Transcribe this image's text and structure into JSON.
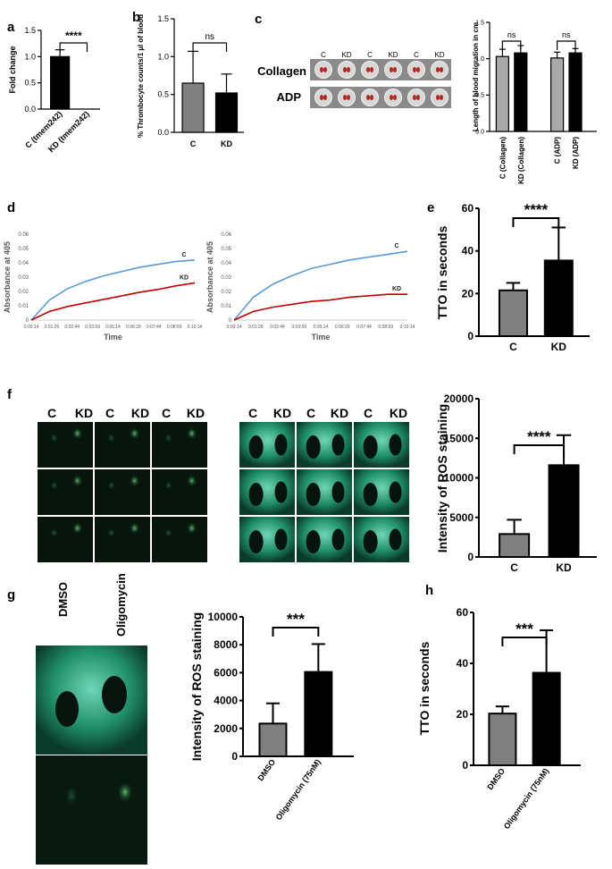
{
  "panels": {
    "a": "a",
    "b": "b",
    "c": "c",
    "d": "d",
    "e": "e",
    "f": "f",
    "g": "g",
    "h": "h"
  },
  "image_labels": {
    "c_rows": [
      "Collagen",
      "ADP"
    ],
    "c_cols": [
      "C",
      "KD",
      "C",
      "KD",
      "C",
      "KD"
    ],
    "f_cols": [
      "C",
      "KD",
      "C",
      "KD",
      "C",
      "KD"
    ],
    "g_cols": [
      "DMSO",
      "Oligomycin"
    ]
  },
  "chart_data": [
    {
      "id": "a",
      "type": "bar",
      "categories": [
        "C (tmem242)",
        "KD (tmem242)"
      ],
      "values": [
        1.0,
        0.0
      ],
      "errors": [
        0.13,
        0.0
      ],
      "colors": [
        "#000000",
        "#000000"
      ],
      "ylabel": "Fold change",
      "ylim": [
        0,
        1.5
      ],
      "yticks": [
        "0.0",
        "0.5",
        "1.0",
        "1.5"
      ],
      "ytick_values": [
        0,
        0.5,
        1.0,
        1.5
      ],
      "significance": "****"
    },
    {
      "id": "b",
      "type": "bar",
      "categories": [
        "C",
        "KD"
      ],
      "values": [
        0.65,
        0.52
      ],
      "errors": [
        0.42,
        0.25
      ],
      "colors": [
        "#808080",
        "#000000"
      ],
      "ylabel": "% Thrombocyte counts/1 µl of blood",
      "ylim": [
        0,
        1.5
      ],
      "yticks": [
        "0.0",
        "0.5",
        "1.0",
        "1.5"
      ],
      "ytick_values": [
        0,
        0.5,
        1.0,
        1.5
      ],
      "significance": "ns"
    },
    {
      "id": "c",
      "type": "bar",
      "categories": [
        "C (Collagen)",
        "KD (Collagen)",
        "C (ADP)",
        "KD (ADP)"
      ],
      "values": [
        1.03,
        1.08,
        1.01,
        1.08
      ],
      "errors": [
        0.1,
        0.1,
        0.08,
        0.06
      ],
      "colors": [
        "#a9a9a9",
        "#000000",
        "#a9a9a9",
        "#000000"
      ],
      "ylabel": "Length of blood migration in cm",
      "ylim": [
        0,
        1.5
      ],
      "yticks": [
        "0.0",
        "0.5",
        "1.0",
        "1.5"
      ],
      "ytick_values": [
        0,
        0.5,
        1.0,
        1.5
      ],
      "significance": [
        "ns",
        "ns"
      ]
    },
    {
      "id": "d1",
      "type": "line",
      "xlabel": "Time",
      "ylabel": "Absorbance at 405",
      "xticks": [
        "0:00:14",
        "0:01:29",
        "0:02:44",
        "0:03:59",
        "0:05:14",
        "0:06:29",
        "0:07:44",
        "0:08:59",
        "0:10:14"
      ],
      "yticks": [
        "0",
        "0.01",
        "0.02",
        "0.03",
        "0.04",
        "0.05",
        "0.06"
      ],
      "ylim": [
        0,
        0.06
      ],
      "series": [
        {
          "name": "C",
          "color": "#5b9bd5",
          "values": [
            0,
            0.014,
            0.022,
            0.027,
            0.031,
            0.034,
            0.037,
            0.039,
            0.041,
            0.042
          ]
        },
        {
          "name": "KD",
          "color": "#c00000",
          "values": [
            0,
            0.006,
            0.0095,
            0.012,
            0.0145,
            0.017,
            0.0195,
            0.0215,
            0.024,
            0.026
          ]
        }
      ]
    },
    {
      "id": "d2",
      "type": "line",
      "xlabel": "Time",
      "ylabel": "Absorbance at 405",
      "xticks": [
        "0:00:14",
        "0:01:29",
        "0:02:44",
        "0:03:59",
        "0:05:14",
        "0:06:29",
        "0:07:44",
        "0:08:59",
        "0:10:14"
      ],
      "yticks": [
        "0",
        "0.01",
        "0.02",
        "0.03",
        "0.04",
        "0.05",
        "0.06"
      ],
      "ylim": [
        0,
        0.06
      ],
      "series": [
        {
          "name": "C",
          "color": "#5b9bd5",
          "values": [
            0,
            0.016,
            0.025,
            0.031,
            0.036,
            0.039,
            0.042,
            0.044,
            0.046,
            0.048
          ]
        },
        {
          "name": "KD",
          "color": "#c00000",
          "values": [
            0,
            0.006,
            0.009,
            0.011,
            0.013,
            0.014,
            0.016,
            0.017,
            0.018,
            0.018
          ]
        }
      ]
    },
    {
      "id": "e",
      "type": "bar",
      "categories": [
        "C",
        "KD"
      ],
      "values": [
        21.5,
        35.5
      ],
      "errors": [
        3.5,
        15.5
      ],
      "colors": [
        "#808080",
        "#000000"
      ],
      "ylabel": "TTO in seconds",
      "ylim": [
        0,
        60
      ],
      "yticks": [
        "0",
        "20",
        "40",
        "60"
      ],
      "ytick_values": [
        0,
        20,
        40,
        60
      ],
      "significance": "****"
    },
    {
      "id": "f",
      "type": "bar",
      "categories": [
        "C",
        "KD"
      ],
      "values": [
        2900,
        11600
      ],
      "errors": [
        1800,
        3800
      ],
      "colors": [
        "#808080",
        "#000000"
      ],
      "ylabel": "Intensity of ROS staining",
      "ylim": [
        0,
        20000
      ],
      "yticks": [
        "0",
        "5000",
        "10000",
        "15000",
        "20000"
      ],
      "ytick_values": [
        0,
        5000,
        10000,
        15000,
        20000
      ],
      "significance": "****"
    },
    {
      "id": "g",
      "type": "bar",
      "categories": [
        "DMSO",
        "Oligomycin (75nM)"
      ],
      "values": [
        2350,
        6050
      ],
      "errors": [
        1450,
        2000
      ],
      "colors": [
        "#808080",
        "#000000"
      ],
      "ylabel": "Intensity of ROS staining",
      "ylim": [
        0,
        10000
      ],
      "yticks": [
        "0",
        "2000",
        "4000",
        "6000",
        "8000",
        "10000"
      ],
      "ytick_values": [
        0,
        2000,
        4000,
        6000,
        8000,
        10000
      ],
      "significance": "***"
    },
    {
      "id": "h",
      "type": "bar",
      "categories": [
        "DMSO",
        "Oligomycin (75nM)"
      ],
      "values": [
        20.3,
        36.3
      ],
      "errors": [
        2.8,
        16.7
      ],
      "colors": [
        "#808080",
        "#000000"
      ],
      "ylabel": "TTO in seconds",
      "ylim": [
        0,
        60
      ],
      "yticks": [
        "0",
        "20",
        "40",
        "60"
      ],
      "ytick_values": [
        0,
        20,
        40,
        60
      ],
      "significance": "***"
    }
  ]
}
